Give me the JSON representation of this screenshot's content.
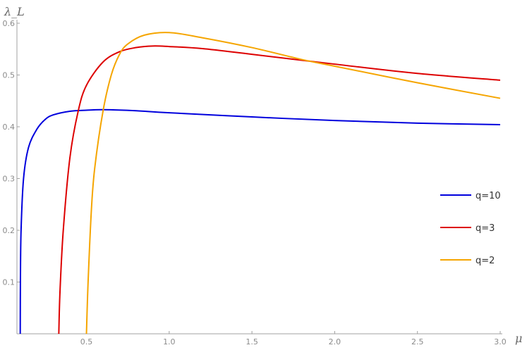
{
  "chart_data": {
    "type": "line",
    "xlabel": "μ",
    "ylabel": "λ_L",
    "xlim": [
      0.08,
      3.0
    ],
    "ylim": [
      0.0,
      0.6
    ],
    "x_ticks": [
      {
        "value": 0.5,
        "label": "0.5"
      },
      {
        "value": 1.0,
        "label": "1.0"
      },
      {
        "value": 1.5,
        "label": "1.5"
      },
      {
        "value": 2.0,
        "label": "2.0"
      },
      {
        "value": 2.5,
        "label": "2.5"
      },
      {
        "value": 3.0,
        "label": "3.0"
      }
    ],
    "y_ticks": [
      {
        "value": 0.1,
        "label": "0.1"
      },
      {
        "value": 0.2,
        "label": "0.2"
      },
      {
        "value": 0.3,
        "label": "0.3"
      },
      {
        "value": 0.4,
        "label": "0.4"
      },
      {
        "value": 0.5,
        "label": "0.5"
      },
      {
        "value": 0.6,
        "label": "0.6"
      }
    ],
    "legend_placement": "right",
    "series": [
      {
        "name": "q=10",
        "color": "#0000dd",
        "points": [
          [
            0.1,
            0.0
          ],
          [
            0.101,
            0.1
          ],
          [
            0.105,
            0.2
          ],
          [
            0.12,
            0.3
          ],
          [
            0.15,
            0.36
          ],
          [
            0.2,
            0.395
          ],
          [
            0.25,
            0.414
          ],
          [
            0.3,
            0.423
          ],
          [
            0.4,
            0.43
          ],
          [
            0.5,
            0.432
          ],
          [
            0.6,
            0.433
          ],
          [
            0.8,
            0.431
          ],
          [
            1.0,
            0.427
          ],
          [
            1.5,
            0.419
          ],
          [
            2.0,
            0.412
          ],
          [
            2.5,
            0.407
          ],
          [
            3.0,
            0.404
          ]
        ]
      },
      {
        "name": "q=3",
        "color": "#dd0000",
        "points": [
          [
            0.333,
            0.0
          ],
          [
            0.34,
            0.08
          ],
          [
            0.36,
            0.2
          ],
          [
            0.4,
            0.34
          ],
          [
            0.45,
            0.43
          ],
          [
            0.5,
            0.48
          ],
          [
            0.6,
            0.525
          ],
          [
            0.7,
            0.545
          ],
          [
            0.8,
            0.553
          ],
          [
            0.9,
            0.556
          ],
          [
            1.0,
            0.555
          ],
          [
            1.2,
            0.551
          ],
          [
            1.5,
            0.54
          ],
          [
            2.0,
            0.521
          ],
          [
            2.5,
            0.503
          ],
          [
            3.0,
            0.49
          ]
        ]
      },
      {
        "name": "q=2",
        "color": "#f5a500",
        "points": [
          [
            0.5,
            0.0
          ],
          [
            0.51,
            0.1
          ],
          [
            0.53,
            0.24
          ],
          [
            0.55,
            0.32
          ],
          [
            0.6,
            0.43
          ],
          [
            0.65,
            0.5
          ],
          [
            0.7,
            0.54
          ],
          [
            0.75,
            0.56
          ],
          [
            0.85,
            0.577
          ],
          [
            1.0,
            0.582
          ],
          [
            1.2,
            0.572
          ],
          [
            1.5,
            0.553
          ],
          [
            1.8,
            0.53
          ],
          [
            2.0,
            0.517
          ],
          [
            2.5,
            0.485
          ],
          [
            3.0,
            0.455
          ]
        ]
      }
    ]
  }
}
